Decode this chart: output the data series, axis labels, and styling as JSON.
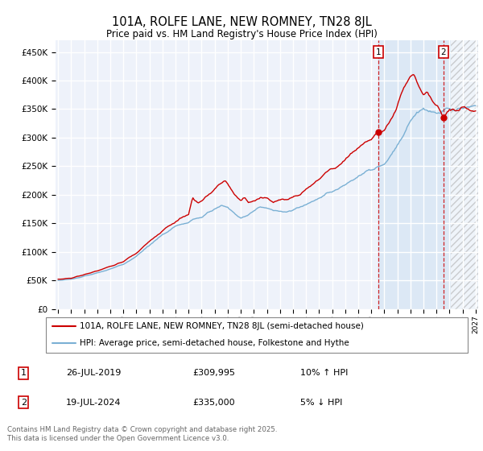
{
  "title": "101A, ROLFE LANE, NEW ROMNEY, TN28 8JL",
  "subtitle": "Price paid vs. HM Land Registry's House Price Index (HPI)",
  "legend_line1": "101A, ROLFE LANE, NEW ROMNEY, TN28 8JL (semi-detached house)",
  "legend_line2": "HPI: Average price, semi-detached house, Folkestone and Hythe",
  "annotation1_date": "26-JUL-2019",
  "annotation1_price": "£309,995",
  "annotation1_hpi": "10% ↑ HPI",
  "annotation2_date": "19-JUL-2024",
  "annotation2_price": "£335,000",
  "annotation2_hpi": "5% ↓ HPI",
  "footer": "Contains HM Land Registry data © Crown copyright and database right 2025.\nThis data is licensed under the Open Government Licence v3.0.",
  "hpi_color": "#7ab0d4",
  "price_color": "#cc0000",
  "background_color": "#ffffff",
  "plot_bg_color": "#eef2fa",
  "grid_color": "#ffffff",
  "shade_color": "#dce8f5",
  "hatch_color": "#c8d8e8",
  "annotation_marker_color": "#cc0000",
  "ylim": [
    0,
    470000
  ],
  "yticks": [
    0,
    50000,
    100000,
    150000,
    200000,
    250000,
    300000,
    350000,
    400000,
    450000
  ],
  "sale1_x": 2019.57,
  "sale1_y": 309995,
  "sale2_x": 2024.55,
  "sale2_y": 335000,
  "xmin": 1994.8,
  "xmax": 2027.2
}
